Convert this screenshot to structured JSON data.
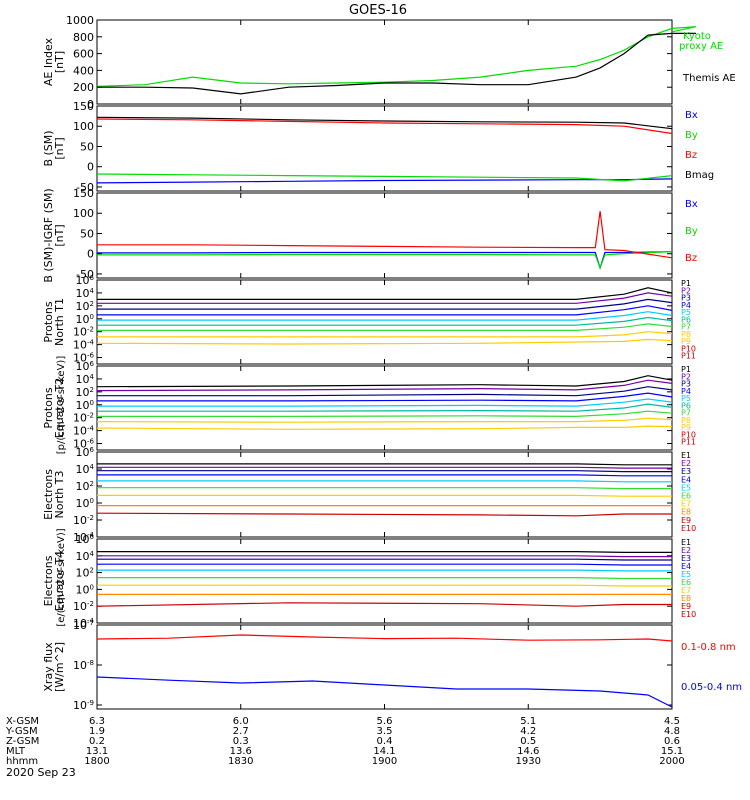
{
  "title": "GOES-16",
  "date_label": "2020 Sep 23",
  "x_axis_rows": [
    {
      "label": "X-GSM",
      "values": [
        "6.3",
        "6.0",
        "5.6",
        "5.1",
        "4.5"
      ]
    },
    {
      "label": "Y-GSM",
      "values": [
        "1.9",
        "2.7",
        "3.5",
        "4.2",
        "4.8"
      ]
    },
    {
      "label": "Z-GSM",
      "values": [
        "0.2",
        "0.3",
        "0.4",
        "0.5",
        "0.6"
      ]
    },
    {
      "label": "MLT",
      "values": [
        "13.1",
        "13.6",
        "14.1",
        "14.6",
        "15.1"
      ]
    },
    {
      "label": "hhmm",
      "values": [
        "1800",
        "1830",
        "1900",
        "1930",
        "2000"
      ]
    }
  ],
  "colors": {
    "black": "#000000",
    "red": "#ff0000",
    "green": "#00dd00",
    "blue": "#0000ff",
    "cyan": "#00ccff",
    "teal": "#00bb99",
    "lightgreen": "#33dd33",
    "yellow": "#ffcc00",
    "orange": "#ff8800",
    "purple": "#7700aa",
    "darkred": "#cc0000",
    "navy": "#000088"
  },
  "chart_data": [
    {
      "type": "line",
      "id": "ae",
      "ylabel": [
        "AE Index",
        "[nT]"
      ],
      "yscale": "linear",
      "ylim": [
        0,
        1000
      ],
      "yticks": [
        "0",
        "200",
        "400",
        "600",
        "800",
        "1000"
      ],
      "x": [
        1800,
        1810,
        1820,
        1830,
        1840,
        1850,
        1900,
        1910,
        1920,
        1930,
        1940,
        1945,
        1950,
        1955,
        1960,
        1965,
        2000
      ],
      "series": [
        {
          "name": "Kyoto proxy AE",
          "color": "#00dd00",
          "values": [
            210,
            230,
            320,
            250,
            240,
            250,
            260,
            280,
            320,
            400,
            450,
            530,
            640,
            800,
            900,
            920,
            860
          ]
        },
        {
          "name": "Themis AE",
          "color": "#000000",
          "values": [
            200,
            200,
            190,
            120,
            200,
            220,
            250,
            250,
            230,
            230,
            320,
            430,
            600,
            820,
            840,
            840,
            840
          ]
        }
      ]
    },
    {
      "type": "line",
      "id": "bsm",
      "ylabel": [
        "B (SM)",
        "[nT]"
      ],
      "yscale": "linear",
      "ylim": [
        -60,
        150
      ],
      "yticks": [
        "-50",
        "0",
        "50",
        "100",
        "150"
      ],
      "x": [
        1800,
        1820,
        1840,
        1900,
        1920,
        1940,
        1950,
        2000
      ],
      "series": [
        {
          "name": "Bx",
          "color": "#0000ff",
          "values": [
            -40,
            -38,
            -36,
            -34,
            -33,
            -32,
            -32,
            -30
          ]
        },
        {
          "name": "By",
          "color": "#00dd00",
          "values": [
            -18,
            -20,
            -22,
            -24,
            -26,
            -28,
            -35,
            -22
          ]
        },
        {
          "name": "Bz",
          "color": "#ff0000",
          "values": [
            118,
            116,
            112,
            108,
            106,
            104,
            100,
            82
          ]
        },
        {
          "name": "Bmag",
          "color": "#000000",
          "values": [
            122,
            120,
            116,
            113,
            111,
            110,
            108,
            94
          ]
        }
      ]
    },
    {
      "type": "line",
      "id": "bigrf",
      "ylabel": [
        "B (SM)-IGRF (SM)",
        "[nT]"
      ],
      "yscale": "linear",
      "ylim": [
        -60,
        150
      ],
      "yticks": [
        "-50",
        "0",
        "50",
        "100",
        "150"
      ],
      "x": [
        1800,
        1820,
        1840,
        1900,
        1920,
        1940,
        1944,
        1945,
        1946,
        1950,
        2000
      ],
      "series": [
        {
          "name": "Bx",
          "color": "#0000ff",
          "values": [
            2,
            2,
            3,
            3,
            3,
            3,
            3,
            -35,
            3,
            3,
            5
          ]
        },
        {
          "name": "By",
          "color": "#00dd00",
          "values": [
            -3,
            -3,
            -2,
            -2,
            -2,
            -3,
            -3,
            -35,
            -3,
            0,
            5
          ]
        },
        {
          "name": "Bz",
          "color": "#ff0000",
          "values": [
            22,
            22,
            20,
            18,
            16,
            15,
            15,
            105,
            10,
            8,
            -10
          ]
        }
      ]
    },
    {
      "type": "line",
      "id": "pn",
      "ylabel": [
        "Protons",
        "North T1"
      ],
      "yscale": "log",
      "ylim": [
        -7,
        6
      ],
      "yticks": [
        "10^6",
        "10^4",
        "10^2",
        "10^0",
        "10^-2",
        "10^-4",
        "10^-6"
      ],
      "x": [
        1800,
        1840,
        1920,
        1940,
        1950,
        1955,
        2000
      ],
      "series": [
        {
          "name": "P1",
          "color": "#000000",
          "values": [
            3.0,
            3.0,
            3.0,
            3.0,
            3.8,
            4.8,
            4.0
          ]
        },
        {
          "name": "P2",
          "color": "#7700aa",
          "values": [
            2.4,
            2.4,
            2.4,
            2.4,
            3.2,
            4.0,
            3.5
          ]
        },
        {
          "name": "P3",
          "color": "#000088",
          "values": [
            1.5,
            1.5,
            1.5,
            1.5,
            2.3,
            3.0,
            2.5
          ]
        },
        {
          "name": "P4",
          "color": "#0000ff",
          "values": [
            0.6,
            0.6,
            0.6,
            0.6,
            1.4,
            2.0,
            1.3
          ]
        },
        {
          "name": "P5",
          "color": "#00ccff",
          "values": [
            -0.2,
            -0.2,
            -0.2,
            -0.2,
            0.5,
            1.1,
            0.5
          ]
        },
        {
          "name": "P6",
          "color": "#00bb99",
          "values": [
            -1.0,
            -1.0,
            -1.0,
            -1.0,
            -0.4,
            0.2,
            -0.3
          ]
        },
        {
          "name": "P7",
          "color": "#33dd33",
          "values": [
            -1.8,
            -1.8,
            -1.8,
            -1.8,
            -1.3,
            -0.8,
            -1.2
          ]
        },
        {
          "name": "P8",
          "color": "#ffcc00",
          "values": [
            -2.8,
            -2.8,
            -2.8,
            -2.8,
            -2.5,
            -2.0,
            -2.3
          ]
        },
        {
          "name": "P9",
          "color": "#ffcc00",
          "values": [
            -3.8,
            -3.9,
            -3.8,
            -3.6,
            -3.5,
            -3.2,
            -3.4
          ]
        }
      ],
      "legend": [
        "P1",
        "P2",
        "P3",
        "P4",
        "P5",
        "P6",
        "P7",
        "P8",
        "P9",
        "P10",
        "P11"
      ]
    },
    {
      "type": "line",
      "id": "pe",
      "ylabel": [
        "Protons",
        "Equator T2"
      ],
      "yscale": "log",
      "ylim": [
        -7,
        6
      ],
      "yticks": [
        "10^6",
        "10^4",
        "10^2",
        "10^0",
        "10^-2",
        "10^-4",
        "10^-6"
      ],
      "x": [
        1800,
        1840,
        1920,
        1940,
        1950,
        1955,
        2000
      ],
      "series": [
        {
          "name": "P1",
          "color": "#000000",
          "values": [
            2.8,
            2.9,
            3.1,
            2.9,
            3.6,
            4.5,
            3.8
          ]
        },
        {
          "name": "P2",
          "color": "#7700aa",
          "values": [
            2.2,
            2.3,
            2.5,
            2.3,
            3.0,
            3.8,
            3.3
          ]
        },
        {
          "name": "P3",
          "color": "#000088",
          "values": [
            1.4,
            1.4,
            1.6,
            1.4,
            2.1,
            2.8,
            2.3
          ]
        },
        {
          "name": "P4",
          "color": "#0000ff",
          "values": [
            0.6,
            0.6,
            0.7,
            0.6,
            1.3,
            1.8,
            1.2
          ]
        },
        {
          "name": "P5",
          "color": "#00ccff",
          "values": [
            -0.2,
            -0.2,
            -0.1,
            -0.2,
            0.4,
            0.9,
            0.4
          ]
        },
        {
          "name": "P6",
          "color": "#00bb99",
          "values": [
            -1.0,
            -1.0,
            -0.9,
            -1.0,
            -0.5,
            0.1,
            -0.4
          ]
        },
        {
          "name": "P7",
          "color": "#33dd33",
          "values": [
            -1.8,
            -1.8,
            -1.7,
            -1.8,
            -1.4,
            -1.0,
            -1.3
          ]
        },
        {
          "name": "P8",
          "color": "#ffcc00",
          "values": [
            -2.6,
            -2.7,
            -2.6,
            -2.6,
            -2.4,
            -2.1,
            -2.3
          ]
        },
        {
          "name": "P9",
          "color": "#ffcc00",
          "values": [
            -3.6,
            -3.8,
            -3.7,
            -3.5,
            -3.5,
            -3.3,
            -3.4
          ]
        }
      ],
      "legend": [
        "P1",
        "P2",
        "P3",
        "P4",
        "P5",
        "P6",
        "P7",
        "P8",
        "P9",
        "P10",
        "P11"
      ]
    },
    {
      "type": "line",
      "id": "en",
      "ylabel": [
        "Electrons",
        "North T3"
      ],
      "yscale": "log",
      "ylim": [
        -4,
        6
      ],
      "yticks": [
        "10^6",
        "10^4",
        "10^2",
        "10^0",
        "10^-2",
        "10^-4"
      ],
      "x": [
        1800,
        1840,
        1920,
        1940,
        1950,
        2000
      ],
      "series": [
        {
          "name": "E1",
          "color": "#000000",
          "values": [
            4.6,
            4.6,
            4.6,
            4.6,
            4.5,
            4.5
          ]
        },
        {
          "name": "E2",
          "color": "#7700aa",
          "values": [
            4.2,
            4.2,
            4.2,
            4.2,
            4.1,
            4.1
          ]
        },
        {
          "name": "E3",
          "color": "#000088",
          "values": [
            3.8,
            3.8,
            3.8,
            3.8,
            3.7,
            3.7
          ]
        },
        {
          "name": "E4",
          "color": "#0000ff",
          "values": [
            3.3,
            3.3,
            3.3,
            3.3,
            3.2,
            3.2
          ]
        },
        {
          "name": "E5",
          "color": "#00ccff",
          "values": [
            2.6,
            2.6,
            2.6,
            2.6,
            2.5,
            2.5
          ]
        },
        {
          "name": "E6",
          "color": "#33dd33",
          "values": [
            1.8,
            1.8,
            1.8,
            1.8,
            1.7,
            1.7
          ]
        },
        {
          "name": "E7",
          "color": "#ffcc00",
          "values": [
            0.9,
            0.9,
            0.9,
            0.9,
            0.8,
            0.8
          ]
        },
        {
          "name": "E8",
          "color": "#ff8800",
          "values": [
            -0.3,
            -0.3,
            -0.3,
            -0.3,
            -0.3,
            -0.3
          ]
        },
        {
          "name": "E9",
          "color": "#cc0000",
          "values": [
            -1.2,
            -1.3,
            -1.4,
            -1.5,
            -1.3,
            -1.3
          ]
        }
      ],
      "legend": [
        "E1",
        "E2",
        "E3",
        "E4",
        "E5",
        "E6",
        "E7",
        "E8",
        "E9",
        "E10"
      ]
    },
    {
      "type": "line",
      "id": "ee",
      "ylabel": [
        "Electrons",
        "Equator T4"
      ],
      "yscale": "log",
      "ylim": [
        -4,
        6
      ],
      "yticks": [
        "10^6",
        "10^4",
        "10^2",
        "10^0",
        "10^-2",
        "10^-4"
      ],
      "x": [
        1800,
        1840,
        1920,
        1940,
        1950,
        2000
      ],
      "series": [
        {
          "name": "E1",
          "color": "#000000",
          "values": [
            4.5,
            4.5,
            4.5,
            4.5,
            4.4,
            4.4
          ]
        },
        {
          "name": "E2",
          "color": "#7700aa",
          "values": [
            4.0,
            4.0,
            4.0,
            4.0,
            3.9,
            3.9
          ]
        },
        {
          "name": "E3",
          "color": "#000088",
          "values": [
            3.6,
            3.6,
            3.6,
            3.6,
            3.5,
            3.5
          ]
        },
        {
          "name": "E4",
          "color": "#0000ff",
          "values": [
            3.0,
            3.0,
            3.0,
            3.0,
            2.9,
            2.9
          ]
        },
        {
          "name": "E5",
          "color": "#00ccff",
          "values": [
            2.3,
            2.3,
            2.3,
            2.3,
            2.2,
            2.2
          ]
        },
        {
          "name": "E6",
          "color": "#33dd33",
          "values": [
            1.4,
            1.4,
            1.4,
            1.4,
            1.3,
            1.3
          ]
        },
        {
          "name": "E7",
          "color": "#ffcc00",
          "values": [
            0.5,
            0.5,
            0.5,
            0.5,
            0.4,
            0.4
          ]
        },
        {
          "name": "E8",
          "color": "#ff8800",
          "values": [
            -0.6,
            -0.6,
            -0.6,
            -0.6,
            -0.6,
            -0.6
          ]
        },
        {
          "name": "E9",
          "color": "#cc0000",
          "values": [
            -2.0,
            -1.6,
            -1.7,
            -2.0,
            -1.8,
            -1.8
          ]
        }
      ],
      "legend": [
        "E1",
        "E2",
        "E3",
        "E4",
        "E5",
        "E6",
        "E7",
        "E8",
        "E9",
        "E10"
      ]
    },
    {
      "type": "line",
      "id": "xray",
      "ylabel": [
        "Xray flux",
        "[W/m^2]"
      ],
      "yscale": "log",
      "ylim": [
        -9.1,
        -7
      ],
      "yticks": [
        "10^-7",
        "10^-8",
        "10^-9"
      ],
      "x": [
        1800,
        1815,
        1830,
        1845,
        1900,
        1915,
        1930,
        1945,
        1955,
        2000
      ],
      "series": [
        {
          "name": "0.1-0.8 nm",
          "color": "#ff0000",
          "values": [
            -7.35,
            -7.33,
            -7.25,
            -7.3,
            -7.34,
            -7.33,
            -7.38,
            -7.37,
            -7.35,
            -7.4
          ]
        },
        {
          "name": "0.05-0.4 nm",
          "color": "#0000ff",
          "values": [
            -8.3,
            -8.38,
            -8.45,
            -8.4,
            -8.5,
            -8.6,
            -8.6,
            -8.65,
            -8.75,
            -9.05
          ]
        }
      ],
      "legend": [
        "0.1-0.8 nm",
        "0.05-0.4 nm"
      ]
    }
  ],
  "side_labels": {
    "ae": [
      "Kyoto",
      "proxy AE",
      "Themis AE"
    ],
    "bsm": [
      "Bx",
      "By",
      "Bz",
      "Bmag"
    ],
    "bigrf": [
      "Bx",
      "By",
      "Bz"
    ]
  },
  "shared_units": {
    "protons": "[p/(cm^2-s-sr-keV)]",
    "electrons": "[e/(cm^2-s-sr-keV)]"
  }
}
